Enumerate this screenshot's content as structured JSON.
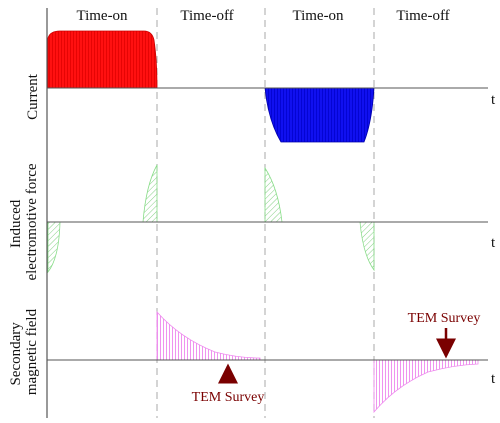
{
  "phases": [
    "Time-on",
    "Time-off",
    "Time-on",
    "Time-off"
  ],
  "panels": [
    {
      "ylabel": [
        "Current"
      ],
      "time_label": "t"
    },
    {
      "ylabel": [
        "Induced",
        "electromotive force"
      ],
      "time_label": "t"
    },
    {
      "ylabel": [
        "Secondary",
        "magnetic field"
      ],
      "time_label": "t"
    }
  ],
  "annotations": [
    {
      "text": "TEM Survey"
    },
    {
      "text": "TEM Survey"
    }
  ],
  "colors": {
    "positive_current": "#ff0000",
    "negative_current": "#0000ee",
    "emf_hatch": "#88dd88",
    "field_hatch": "#ee88ee",
    "arrow": "#7a0000",
    "axis": "#555555",
    "divider": "#aaaaaa"
  }
}
